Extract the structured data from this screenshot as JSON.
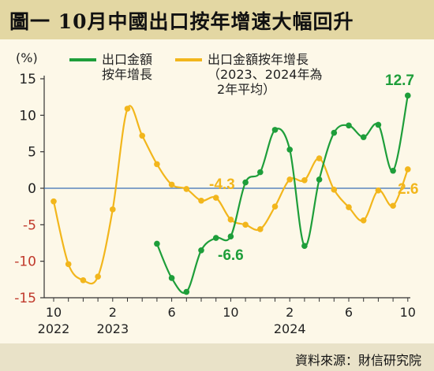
{
  "title": "圖一  10月中國出口按年增速大幅回升",
  "source": "資料來源：財信研究院",
  "chart_data": {
    "type": "line",
    "ylabel": "(%)",
    "ylim": [
      -15,
      15
    ],
    "yticks": [
      15,
      10,
      5,
      0,
      -5,
      -10,
      -15
    ],
    "x_tick_labels": [
      {
        "month": "10",
        "year": "2022"
      },
      {
        "month": "2",
        "year": "2023"
      },
      {
        "month": "6",
        "year": ""
      },
      {
        "month": "10",
        "year": ""
      },
      {
        "month": "2",
        "year": "2024"
      },
      {
        "month": "6",
        "year": ""
      },
      {
        "month": "10",
        "year": ""
      }
    ],
    "x": [
      "2022-10",
      "2022-11",
      "2022-12",
      "2023-01",
      "2023-02",
      "2023-03",
      "2023-04",
      "2023-05",
      "2023-06",
      "2023-07",
      "2023-08",
      "2023-09",
      "2023-10",
      "2023-11",
      "2023-12",
      "2024-01",
      "2024-02",
      "2024-03",
      "2024-04",
      "2024-05",
      "2024-06",
      "2024-07",
      "2024-08",
      "2024-09",
      "2024-10"
    ],
    "series": [
      {
        "name": "出口金額\n按年增長",
        "color": "#1e9e3a",
        "values": [
          null,
          null,
          null,
          null,
          null,
          null,
          null,
          -7.6,
          -12.3,
          -14.2,
          -8.5,
          -6.8,
          -6.6,
          0.8,
          2.2,
          8.0,
          5.3,
          -7.9,
          1.2,
          7.6,
          8.6,
          7.0,
          8.7,
          2.4,
          12.7
        ]
      },
      {
        "name": "出口金額按年增長\n（2023、2024年為\n2年平均）",
        "color": "#f2b61c",
        "values": [
          -1.8,
          -10.4,
          -12.6,
          -12.1,
          -2.9,
          10.9,
          7.2,
          3.3,
          0.5,
          -0.1,
          -1.7,
          -1.3,
          -4.3,
          -5.0,
          -5.6,
          -2.5,
          1.2,
          1.1,
          4.1,
          -0.2,
          -2.6,
          -4.4,
          -0.3,
          -2.4,
          2.6
        ]
      }
    ],
    "annotations": [
      {
        "text": "12.7",
        "color": "#1e9e3a"
      },
      {
        "text": "-6.6",
        "color": "#1e9e3a"
      },
      {
        "text": "-4.3",
        "color": "#f2b61c"
      },
      {
        "text": "2.6",
        "color": "#f2b61c"
      }
    ],
    "zero_line_color": "#3b6fb5",
    "grid": false,
    "legend_position": "top"
  }
}
